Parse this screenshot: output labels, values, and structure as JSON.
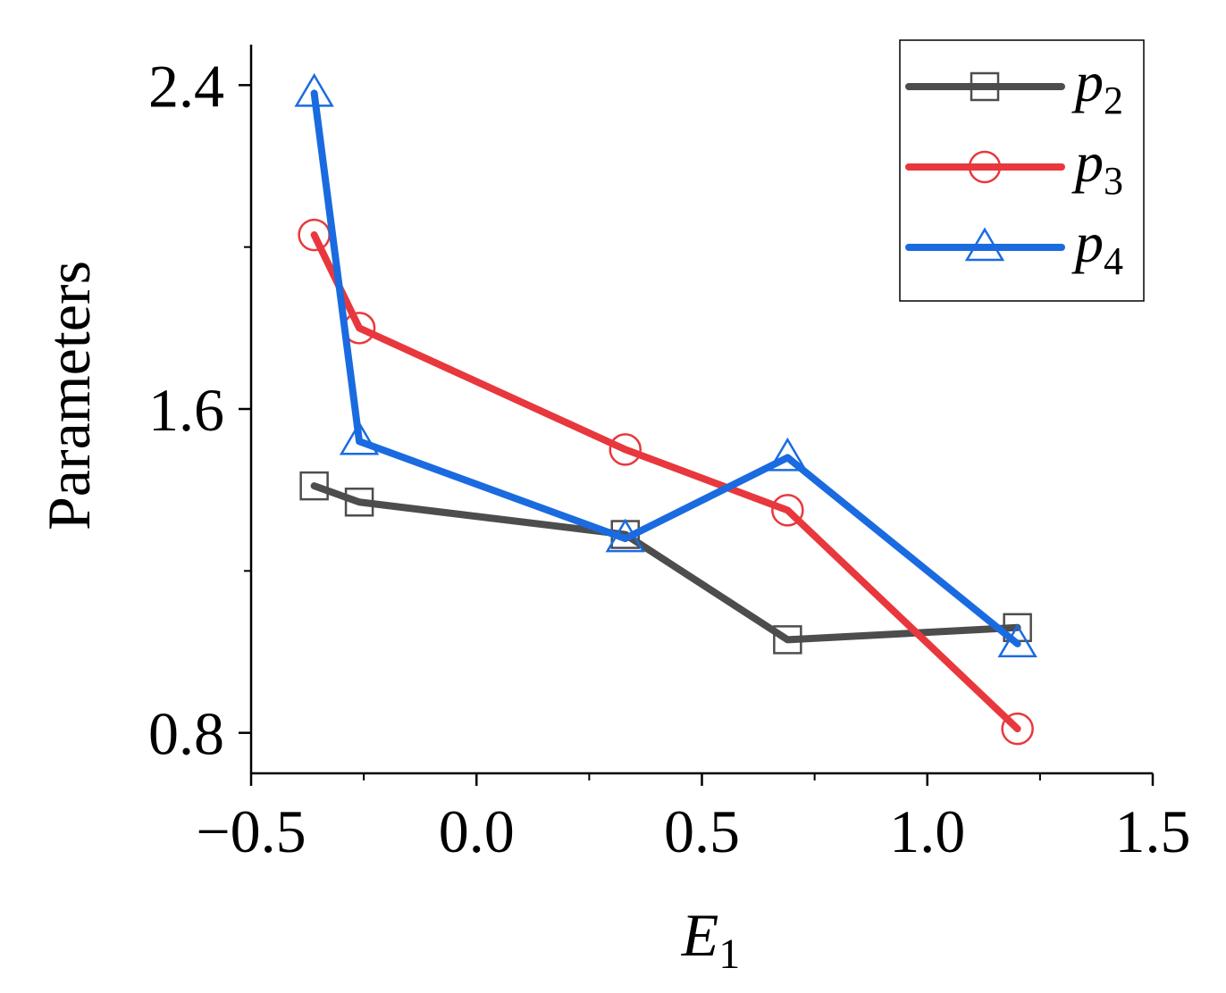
{
  "chart_data": {
    "type": "line",
    "xlabel": "E",
    "xlabel_subscript": "1",
    "ylabel": "Parameters",
    "xlim": [
      -0.5,
      1.5
    ],
    "ylim": [
      0.7,
      2.5
    ],
    "xticks": [
      -0.5,
      0.0,
      0.5,
      1.0,
      1.5
    ],
    "xtick_labels": [
      "−0.5",
      "0.0",
      "0.5",
      "1.0",
      "1.5"
    ],
    "yticks": [
      0.8,
      1.6,
      2.4
    ],
    "ytick_labels": [
      "0.8",
      "1.6",
      "2.4"
    ],
    "x": [
      -0.36,
      -0.26,
      0.33,
      0.69,
      1.2
    ],
    "series": [
      {
        "name": "p",
        "subscript": "2",
        "color": "#4d4d4d",
        "marker": "square",
        "values": [
          1.41,
          1.37,
          1.29,
          1.03,
          1.06
        ]
      },
      {
        "name": "p",
        "subscript": "3",
        "color": "#e8383d",
        "marker": "circle",
        "values": [
          2.03,
          1.8,
          1.5,
          1.35,
          0.81
        ]
      },
      {
        "name": "p",
        "subscript": "4",
        "color": "#1a6be0",
        "marker": "triangle",
        "values": [
          2.38,
          1.52,
          1.28,
          1.48,
          1.02
        ]
      }
    ],
    "legend_position": "top-right",
    "grid": false
  }
}
